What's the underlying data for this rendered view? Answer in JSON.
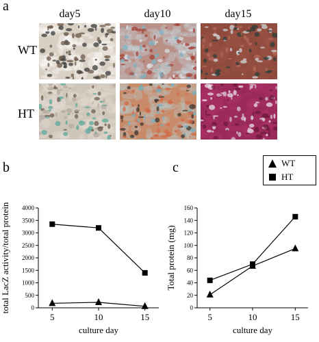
{
  "figure": {
    "panel_a_label": "a",
    "panel_b_label": "b",
    "panel_c_label": "c",
    "columns": [
      "day5",
      "day10",
      "day15"
    ],
    "rows": [
      "WT",
      "HT"
    ],
    "legend": [
      {
        "label": "WT",
        "marker": "triangle"
      },
      {
        "label": "HT",
        "marker": "square"
      }
    ]
  },
  "tiles": {
    "WT": [
      {
        "base": "#d9d0c4",
        "spots": [
          "#3a3a3a",
          "#6b5a4a"
        ],
        "tint": "#ffffff"
      },
      {
        "base": "#b98f86",
        "spots": [
          "#a6433a",
          "#7fb1c2",
          "#d9dde3"
        ],
        "tint": "#c7d8df"
      },
      {
        "base": "#8e4a3c",
        "spots": [
          "#b66b5a",
          "#2f3e3a",
          "#cfd6da"
        ],
        "tint": "#9a5446"
      }
    ],
    "HT": [
      {
        "base": "#cfc6ba",
        "spots": [
          "#5aa79a",
          "#6c5d4f",
          "#b7aba0"
        ],
        "tint": "#e4ddd3"
      },
      {
        "base": "#c98a6a",
        "spots": [
          "#3e3630",
          "#6fb0bf",
          "#d26a46"
        ],
        "tint": "#b7c9c9"
      },
      {
        "base": "#9a2a5a",
        "spots": [
          "#d8c5d5",
          "#6c1a3a",
          "#e9e2ea"
        ],
        "tint": "#b0336a"
      }
    ]
  },
  "chart_data": [
    {
      "type": "line",
      "x": [
        5,
        10,
        15
      ],
      "series": [
        {
          "name": "HT",
          "marker": "square",
          "values": [
            3350,
            3200,
            1400
          ]
        },
        {
          "name": "WT",
          "marker": "triangle",
          "values": [
            180,
            220,
            60
          ]
        }
      ],
      "xlabel": "culture day",
      "ylabel": "total LacZ activity/total protein",
      "ylim": [
        0,
        4000
      ],
      "yticks": [
        0,
        500,
        1000,
        1500,
        2000,
        2500,
        3000,
        3500,
        4000
      ],
      "xticks": [
        5,
        10,
        15
      ]
    },
    {
      "type": "line",
      "x": [
        5,
        10,
        15
      ],
      "series": [
        {
          "name": "HT",
          "marker": "square",
          "values": [
            44,
            70,
            146
          ]
        },
        {
          "name": "WT",
          "marker": "triangle",
          "values": [
            21,
            67,
            95
          ]
        }
      ],
      "xlabel": "culture day",
      "ylabel": "Total protein (mg)",
      "ylim": [
        0,
        160
      ],
      "yticks": [
        0,
        20,
        40,
        60,
        80,
        100,
        120,
        140,
        160
      ],
      "xticks": [
        5,
        10,
        15
      ]
    }
  ]
}
